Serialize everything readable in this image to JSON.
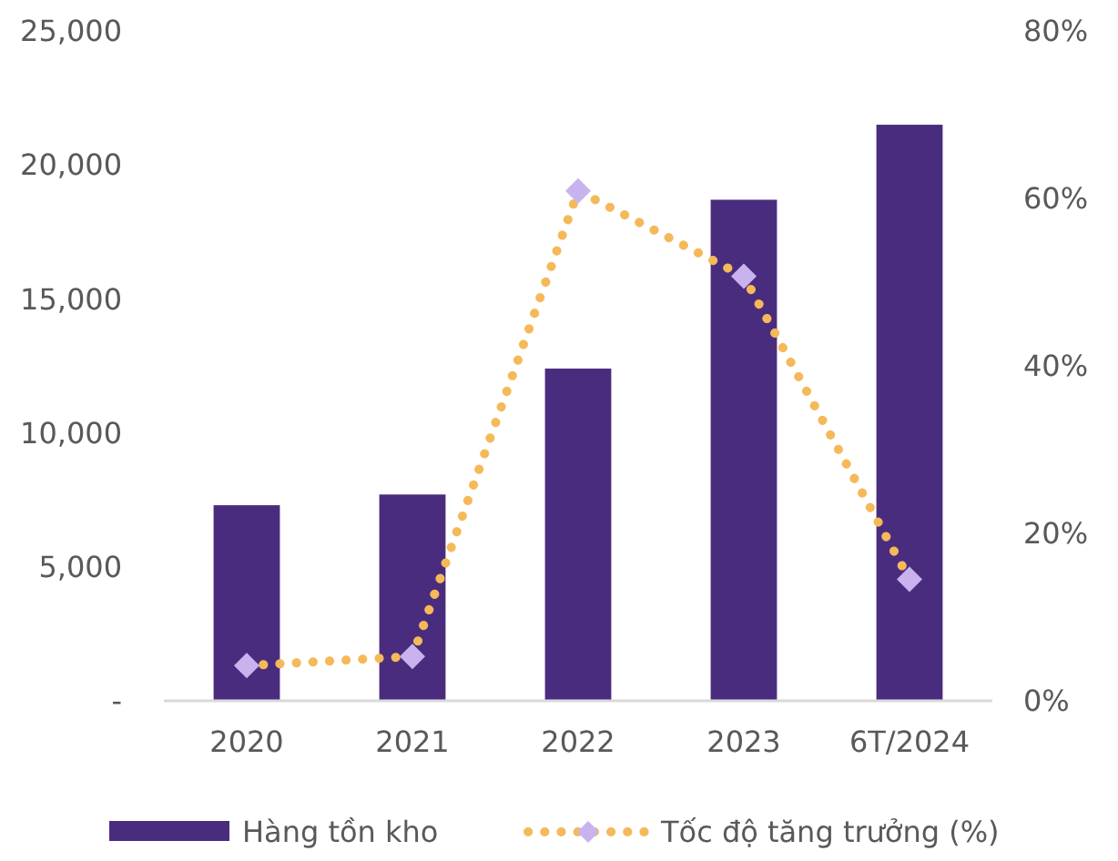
{
  "chart_data": {
    "type": "bar",
    "categories": [
      "2020",
      "2021",
      "2022",
      "2023",
      "6T/2024"
    ],
    "series": [
      {
        "name": "Hàng tồn kho",
        "color": "#4a2c7e",
        "values": [
          7300,
          7700,
          12400,
          18700,
          21500
        ]
      },
      {
        "name": "Tốc độ tăng trưởng (%)",
        "type": "line",
        "axis": "y2",
        "color": "#f5b95a",
        "values": [
          4.2,
          5.3,
          60.9,
          50.7,
          14.5
        ],
        "marker": "diamond",
        "line_style": "dotted"
      }
    ],
    "ylim": [
      0,
      25000
    ],
    "yticks": [
      {
        "value": 0,
        "label": "-"
      },
      {
        "value": 5000,
        "label": "5,000"
      },
      {
        "value": 10000,
        "label": "10,000"
      },
      {
        "value": 15000,
        "label": "15,000"
      },
      {
        "value": 20000,
        "label": "20,000"
      },
      {
        "value": 25000,
        "label": "25,000"
      }
    ],
    "y2lim": [
      0,
      80
    ],
    "y2ticks": [
      {
        "value": 0,
        "label": "0%"
      },
      {
        "value": 20,
        "label": "20%"
      },
      {
        "value": 40,
        "label": "40%"
      },
      {
        "value": 60,
        "label": "60%"
      },
      {
        "value": 80,
        "label": "80%"
      }
    ],
    "grid": false,
    "legend": "bottom"
  }
}
